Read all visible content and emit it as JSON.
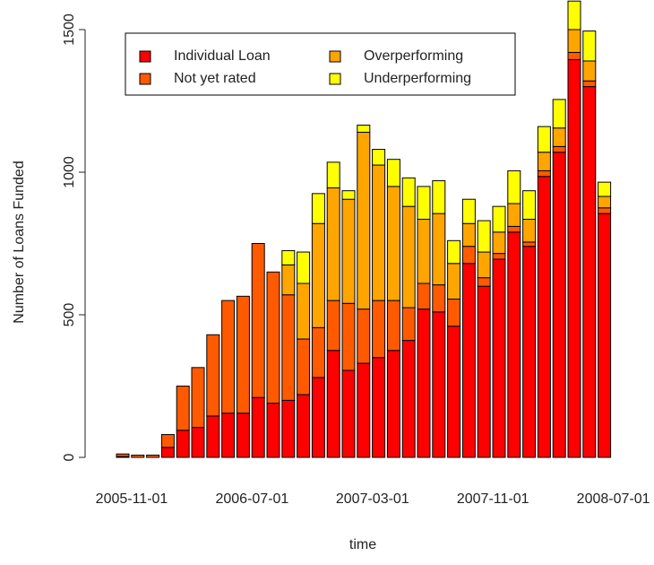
{
  "chart_data": {
    "type": "stacked-bar",
    "x_label": "time",
    "y_label": "Number of Loans Funded",
    "categories": [
      "2005-11-01",
      null,
      null,
      null,
      null,
      null,
      null,
      null,
      "2006-07-01",
      null,
      null,
      null,
      null,
      null,
      null,
      null,
      "2007-03-01",
      null,
      null,
      null,
      null,
      null,
      null,
      null,
      "2007-11-01",
      null,
      null,
      null,
      null,
      null,
      null,
      null,
      "2008-07-01"
    ],
    "series": [
      {
        "name": "Individual Loan",
        "color": "#FF0000",
        "values": [
          3,
          0,
          0,
          35,
          95,
          105,
          145,
          155,
          155,
          210,
          190,
          200,
          220,
          280,
          375,
          305,
          330,
          350,
          375,
          410,
          520,
          510,
          460,
          680,
          600,
          695,
          790,
          740,
          985,
          1070,
          1395,
          1300,
          855
        ]
      },
      {
        "name": "Not yet rated",
        "color": "#FF5A00",
        "values": [
          9,
          8,
          8,
          45,
          155,
          210,
          285,
          395,
          410,
          540,
          460,
          370,
          195,
          175,
          175,
          235,
          190,
          200,
          175,
          115,
          90,
          95,
          95,
          60,
          30,
          20,
          20,
          15,
          20,
          20,
          25,
          20,
          20
        ]
      },
      {
        "name": "Overperforming",
        "color": "#FFA500",
        "values": [
          0,
          0,
          0,
          0,
          0,
          0,
          0,
          0,
          0,
          0,
          0,
          105,
          195,
          365,
          395,
          365,
          620,
          475,
          400,
          355,
          225,
          250,
          125,
          80,
          90,
          75,
          80,
          80,
          65,
          65,
          80,
          70,
          40
        ]
      },
      {
        "name": "Underperforming",
        "color": "#FFFF00",
        "values": [
          0,
          0,
          0,
          0,
          0,
          0,
          0,
          0,
          0,
          0,
          0,
          50,
          110,
          105,
          90,
          30,
          25,
          55,
          95,
          100,
          115,
          115,
          80,
          85,
          110,
          90,
          115,
          100,
          90,
          100,
          100,
          105,
          50
        ]
      }
    ],
    "ylim": [
      0,
      1600
    ],
    "yticks": [
      0,
      500,
      1000,
      1500
    ],
    "legend": "top-left"
  }
}
